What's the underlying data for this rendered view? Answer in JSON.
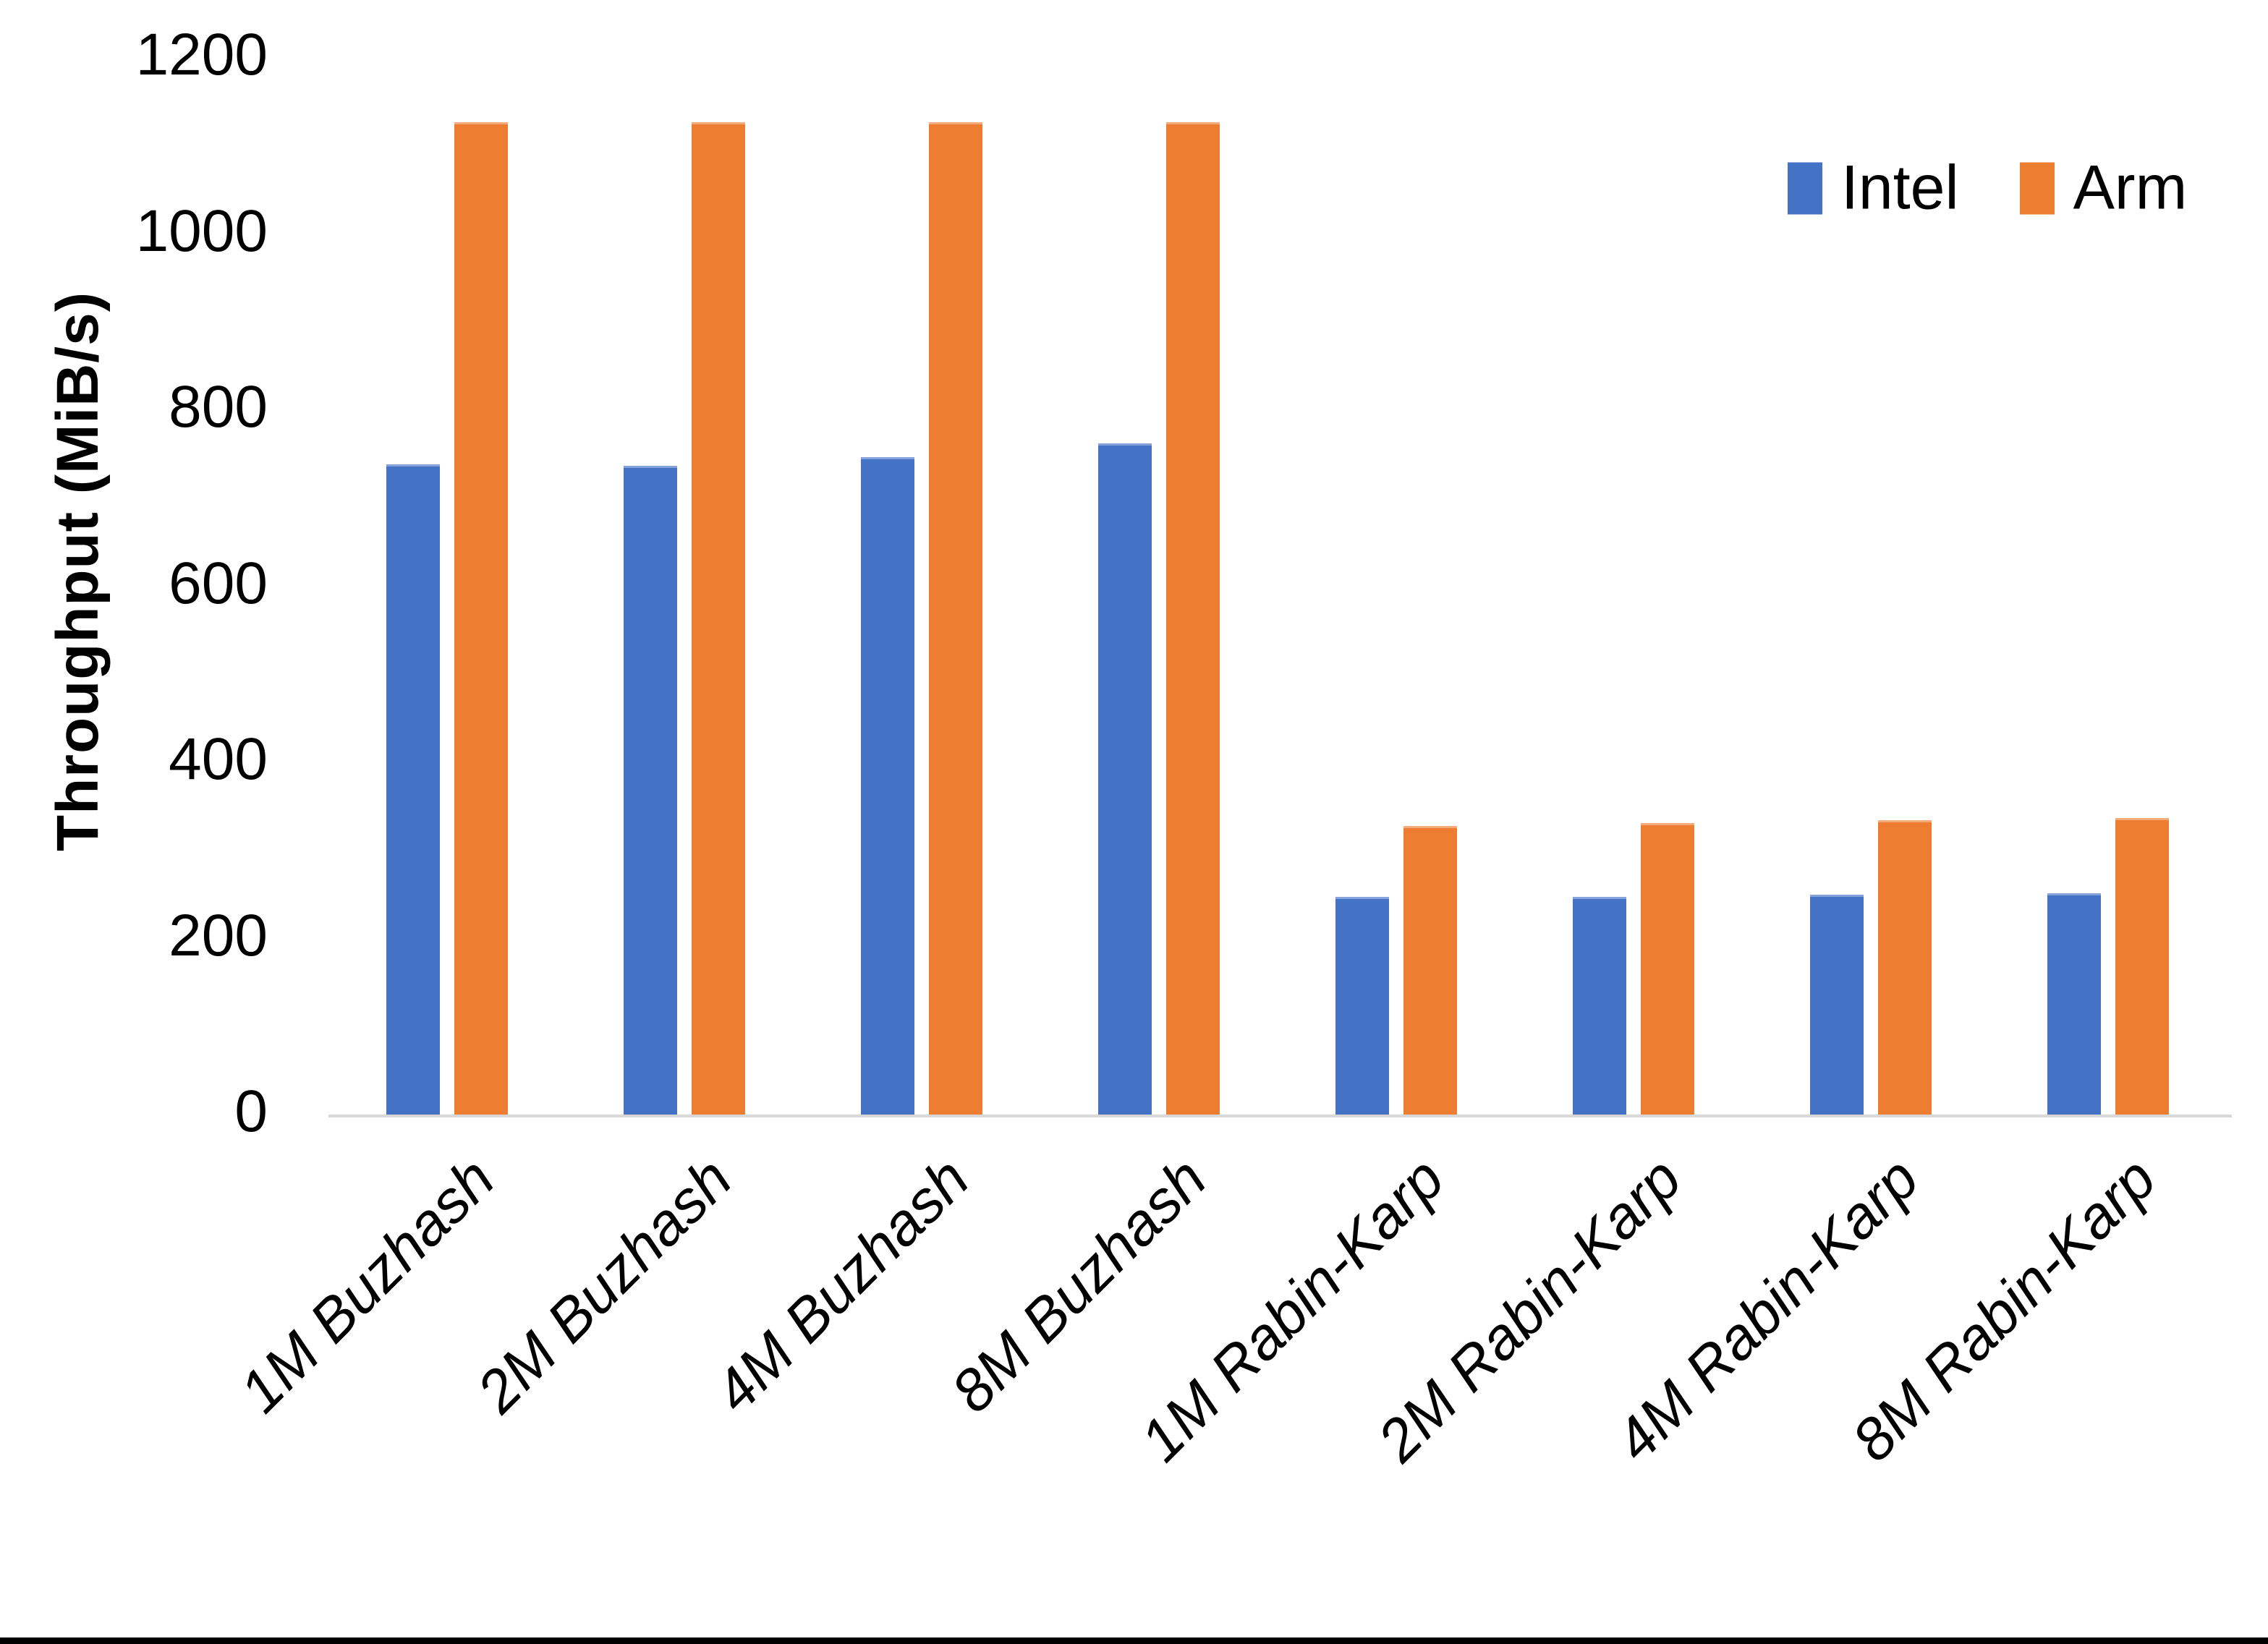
{
  "chart_data": {
    "type": "bar",
    "title": "",
    "xlabel": "",
    "ylabel": "Throughput (MiB/s)",
    "ylim": [
      0,
      1200
    ],
    "yticks": [
      0,
      200,
      400,
      600,
      800,
      1000,
      1200
    ],
    "grid": false,
    "legend_position": "top-right",
    "categories": [
      "1M Buzhash",
      "2M Buzhash",
      "4M Buzhash",
      "8M Buzhash",
      "1M Rabin-Karp",
      "2M Rabin-Karp",
      "4M Rabin-Karp",
      "8M Rabin-Karp"
    ],
    "series": [
      {
        "name": "Intel",
        "color": "#4472C4",
        "values": [
          738,
          737,
          747,
          762,
          247,
          247,
          250,
          251
        ]
      },
      {
        "name": "Arm",
        "color": "#ED7D31",
        "values": [
          1127,
          1127,
          1127,
          1127,
          328,
          331,
          334,
          337
        ]
      }
    ]
  },
  "colors": {
    "background": "#FFFFFF",
    "text": "#000000",
    "axis_line": "#D9D9D9",
    "bottom_bar": "#000000"
  }
}
